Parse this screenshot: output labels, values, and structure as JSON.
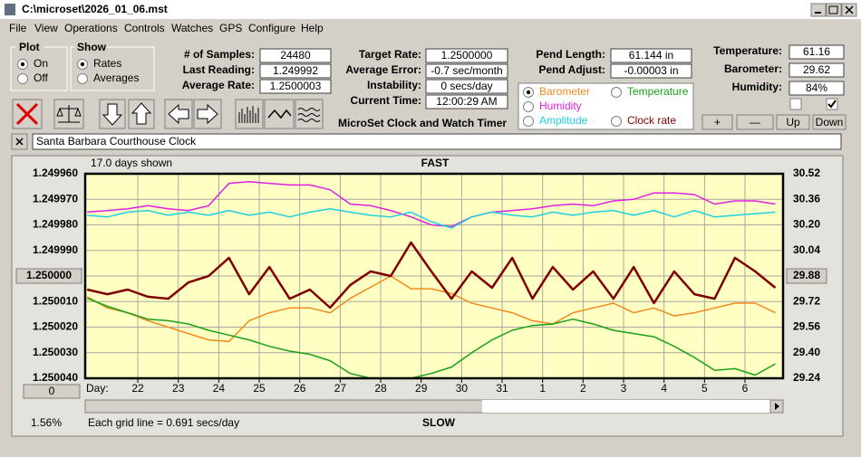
{
  "window": {
    "title": "C:\\microset\\2026_01_06.mst"
  },
  "menu": [
    "File",
    "View",
    "Operations",
    "Controls",
    "Watches",
    "GPS",
    "Configure",
    "Help"
  ],
  "plot": {
    "label": "Plot",
    "options": [
      "On",
      "Off"
    ],
    "selected": 0
  },
  "show": {
    "label": "Show",
    "options": [
      "Rates",
      "Averages"
    ],
    "selected": 0
  },
  "readings": [
    {
      "label": "# of Samples:",
      "value": "24480"
    },
    {
      "label": "Last Reading:",
      "value": "1.249992"
    },
    {
      "label": "Average Rate:",
      "value": "1.2500003"
    }
  ],
  "timing": [
    {
      "label": "Target Rate:",
      "value": "1.2500000"
    },
    {
      "label": "Average Error:",
      "value": "-0.7 sec/month"
    },
    {
      "label": "Instability:",
      "value": "0 secs/day"
    },
    {
      "label": "Current Time:",
      "value": "12:00:29 AM"
    }
  ],
  "pendulum": [
    {
      "label": "Pend Length:",
      "value": "61.144 in"
    },
    {
      "label": "Pend Adjust:",
      "value": "-0.00003 in"
    }
  ],
  "environment": [
    {
      "label": "Temperature:",
      "value": "61.16"
    },
    {
      "label": "Barometer:",
      "value": "29.62"
    },
    {
      "label": "Humidity:",
      "value": "84%"
    }
  ],
  "checkboxes": [
    false,
    true
  ],
  "app_name": "MicroSet Clock and Watch Timer",
  "graph_select": {
    "options": [
      {
        "label": "Barometer",
        "color": "#f08a1c"
      },
      {
        "label": "Temperature",
        "color": "#18a018"
      },
      {
        "label": "Humidity",
        "color": "#e020e0"
      },
      {
        "label": "Amplitude",
        "color": "#20d0e0"
      },
      {
        "label": "Clock rate",
        "color": "#800000"
      }
    ],
    "selected": 0
  },
  "buttons": [
    "+",
    "—",
    "Up",
    "Down"
  ],
  "note": "Santa Barbara Courthouse Clock",
  "chart_data": {
    "type": "line",
    "top_label": "FAST",
    "bottom_label": "SLOW",
    "days_shown": "17.0 days shown",
    "grid_note": "Each grid line = 0.691 secs/day",
    "x_label": "Day:",
    "scroll_button": "0",
    "percent": "1.56%",
    "grid": true,
    "xlim": [
      20.7,
      37.94
    ],
    "xticks": [
      22,
      23,
      24,
      25,
      26,
      27,
      28,
      29,
      30,
      31,
      {
        "value": 32,
        "label": "1"
      },
      {
        "value": 33,
        "label": "2"
      },
      {
        "value": 34,
        "label": "3"
      },
      {
        "value": 35,
        "label": "4"
      },
      {
        "value": 36,
        "label": "5"
      },
      {
        "value": 37,
        "label": "6"
      }
    ],
    "ylim": [
      1.25004,
      1.24996
    ],
    "yticks": [
      {
        "value": 1.24996,
        "label": "1.249960"
      },
      {
        "value": 1.24997,
        "label": "1.249970"
      },
      {
        "value": 1.24998,
        "label": "1.249980"
      },
      {
        "value": 1.24999,
        "label": "1.249990"
      },
      {
        "value": 1.25001,
        "label": "1.250010"
      },
      {
        "value": 1.25002,
        "label": "1.250020"
      },
      {
        "value": 1.25003,
        "label": "1.250030"
      },
      {
        "value": 1.25004,
        "label": "1.250040"
      }
    ],
    "y_button": {
      "value": 1.25,
      "label": "1.250000"
    },
    "y2lim": [
      29.24,
      30.52
    ],
    "y2ticks": [
      30.52,
      30.36,
      {
        "value": 30.2,
        "label": "30.20"
      },
      30.04,
      29.72,
      29.56,
      {
        "value": 29.4,
        "label": "29.40"
      },
      29.24
    ],
    "y2_button": 29.88,
    "x": [
      20.75,
      21.25,
      21.75,
      22.25,
      22.75,
      23.25,
      23.75,
      24.25,
      24.75,
      25.25,
      25.75,
      26.25,
      26.75,
      27.25,
      27.75,
      28.25,
      28.75,
      29.25,
      29.75,
      30.25,
      30.75,
      31.25,
      31.75,
      32.25,
      32.75,
      33.25,
      33.75,
      34.25,
      34.75,
      35.25,
      35.75,
      36.25,
      36.75,
      37.25,
      37.75
    ],
    "series": [
      {
        "name": "Humidity",
        "color": "#e020e0",
        "axis": "y2",
        "values": [
          30.28,
          30.29,
          30.3,
          30.32,
          30.3,
          30.29,
          30.32,
          30.46,
          30.47,
          30.46,
          30.45,
          30.45,
          30.42,
          30.33,
          30.32,
          30.29,
          30.25,
          30.2,
          30.19,
          30.25,
          30.28,
          30.29,
          30.3,
          30.32,
          30.33,
          30.32,
          30.35,
          30.36,
          30.4,
          30.4,
          30.39,
          30.33,
          30.35,
          30.35,
          30.33
        ]
      },
      {
        "name": "Amplitude",
        "color": "#20d0e0",
        "axis": "y2",
        "values": [
          30.26,
          30.25,
          30.28,
          30.29,
          30.26,
          30.28,
          30.26,
          30.29,
          30.26,
          30.28,
          30.25,
          30.28,
          30.3,
          30.28,
          30.26,
          30.25,
          30.28,
          30.22,
          30.18,
          30.25,
          30.28,
          30.26,
          30.25,
          30.28,
          30.26,
          30.28,
          30.29,
          30.26,
          30.29,
          30.25,
          30.29,
          30.25,
          30.26,
          30.27,
          30.28
        ]
      },
      {
        "name": "Barometer",
        "color": "#f08a1c",
        "axis": "y2",
        "values": [
          29.75,
          29.68,
          29.65,
          29.6,
          29.56,
          29.52,
          29.48,
          29.47,
          29.6,
          29.65,
          29.68,
          29.68,
          29.65,
          29.74,
          29.81,
          29.88,
          29.8,
          29.8,
          29.77,
          29.71,
          29.68,
          29.65,
          29.6,
          29.58,
          29.65,
          29.68,
          29.71,
          29.65,
          29.68,
          29.63,
          29.65,
          29.68,
          29.71,
          29.71,
          29.65
        ]
      },
      {
        "name": "Temperature",
        "color": "#18a018",
        "axis": "y2",
        "values": [
          29.74,
          29.69,
          29.65,
          29.61,
          29.6,
          29.58,
          29.54,
          29.51,
          29.48,
          29.44,
          29.41,
          29.39,
          29.35,
          29.27,
          29.24,
          29.24,
          29.24,
          29.27,
          29.31,
          29.4,
          29.48,
          29.54,
          29.57,
          29.58,
          29.61,
          29.58,
          29.54,
          29.52,
          29.5,
          29.44,
          29.37,
          29.29,
          29.3,
          29.26,
          29.33
        ]
      },
      {
        "name": "Clock rate",
        "color": "#800000",
        "values": [
          1.2500053,
          1.2500071,
          1.2500053,
          1.2500081,
          1.2500089,
          1.2500025,
          1.25,
          1.2499929,
          1.2500071,
          1.2499965,
          1.2500089,
          1.2500053,
          1.2500124,
          1.2500035,
          1.2499982,
          1.25,
          1.2499869,
          1.2499982,
          1.2500089,
          1.2499982,
          1.2500046,
          1.2499929,
          1.2500089,
          1.2499965,
          1.2500053,
          1.2499982,
          1.2500089,
          1.2499965,
          1.2500106,
          1.2499982,
          1.2500071,
          1.2500089,
          1.2499929,
          1.2499982,
          1.2500046
        ]
      }
    ]
  }
}
